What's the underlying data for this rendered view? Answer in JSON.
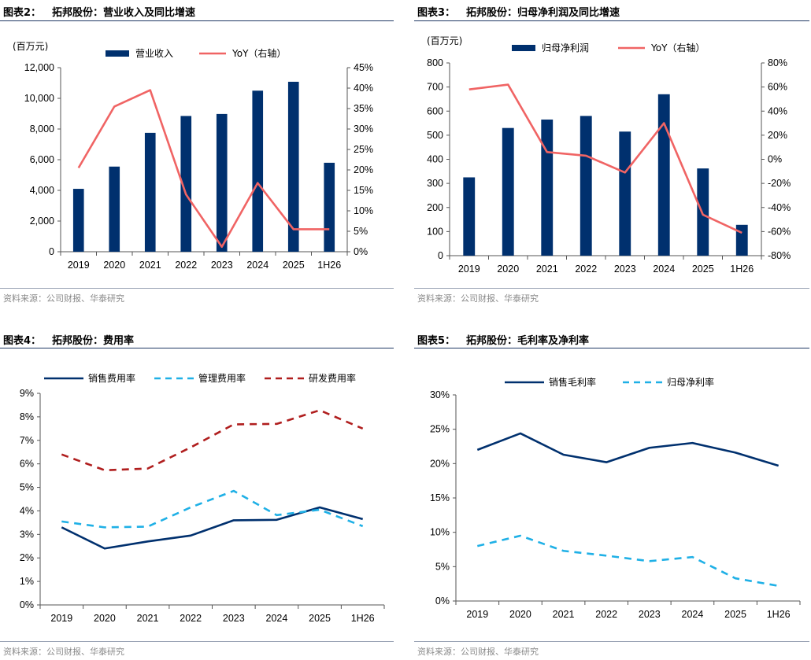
{
  "colors": {
    "navy": "#00306e",
    "red": "#f06464",
    "blue_dash": "#1fb0e6",
    "dark_red": "#b01e1e",
    "rule": "#1f3864"
  },
  "source_text": "资料来源：公司财报、华泰研究",
  "panels": [
    {
      "title_num": "图表2：",
      "title_text": "拓邦股份：营业收入及同比增速",
      "chart_data": {
        "type": "bar",
        "categories": [
          "2019",
          "2020",
          "2021",
          "2022",
          "2023",
          "2024",
          "2025",
          "1H26"
        ],
        "unit_label": "(百万元)",
        "series": [
          {
            "name": "营业收入",
            "type": "bar",
            "axis": "left",
            "values": [
              4100,
              5550,
              7750,
              8850,
              8980,
              10500,
              11080,
              5800
            ]
          },
          {
            "name": "YoY（右轴）",
            "type": "line",
            "axis": "right",
            "values": [
              20.5,
              35.5,
              39.5,
              14.0,
              1.2,
              16.8,
              5.5,
              5.5
            ]
          }
        ],
        "ylim": [
          0,
          12000
        ],
        "yticks": [
          0,
          2000,
          4000,
          6000,
          8000,
          10000,
          12000
        ],
        "ytick_labels": [
          "0",
          "2,000",
          "4,000",
          "6,000",
          "8,000",
          "10,000",
          "12,000"
        ],
        "y2lim": [
          0,
          45
        ],
        "y2ticks": [
          0,
          5,
          10,
          15,
          20,
          25,
          30,
          35,
          40,
          45
        ],
        "y2tick_labels": [
          "0%",
          "5%",
          "10%",
          "15%",
          "20%",
          "25%",
          "30%",
          "35%",
          "40%",
          "45%"
        ],
        "legend": "top"
      }
    },
    {
      "title_num": "图表3：",
      "title_text": "拓邦股份：归母净利润及同比增速",
      "chart_data": {
        "type": "bar",
        "categories": [
          "2019",
          "2020",
          "2021",
          "2022",
          "2023",
          "2024",
          "2025",
          "1H26"
        ],
        "unit_label": "(百万元)",
        "series": [
          {
            "name": "归母净利润",
            "type": "bar",
            "axis": "left",
            "values": [
              325,
              530,
              565,
              580,
              515,
              670,
              362,
              128
            ]
          },
          {
            "name": "YoY（右轴）",
            "type": "line",
            "axis": "right",
            "values": [
              58,
              62,
              6,
              3,
              -11,
              30,
              -46,
              -61
            ]
          }
        ],
        "ylim": [
          0,
          800
        ],
        "yticks": [
          0,
          100,
          200,
          300,
          400,
          500,
          600,
          700,
          800
        ],
        "ytick_labels": [
          "0",
          "100",
          "200",
          "300",
          "400",
          "500",
          "600",
          "700",
          "800"
        ],
        "y2lim": [
          -80,
          80
        ],
        "y2ticks": [
          -80,
          -60,
          -40,
          -20,
          0,
          20,
          40,
          60,
          80
        ],
        "y2tick_labels": [
          "-80%",
          "-60%",
          "-40%",
          "-20%",
          "0%",
          "20%",
          "40%",
          "60%",
          "80%"
        ],
        "legend": "top"
      }
    },
    {
      "title_num": "图表4：",
      "title_text": "拓邦股份：费用率",
      "chart_data": {
        "type": "line",
        "categories": [
          "2019",
          "2020",
          "2021",
          "2022",
          "2023",
          "2024",
          "2025",
          "1H26"
        ],
        "series": [
          {
            "name": "销售费用率",
            "style": "solid",
            "color": "#00306e",
            "values": [
              3.3,
              2.4,
              2.7,
              2.95,
              3.6,
              3.62,
              4.15,
              3.65
            ]
          },
          {
            "name": "管理费用率",
            "style": "dash",
            "color": "#1fb0e6",
            "values": [
              3.55,
              3.3,
              3.33,
              4.15,
              4.85,
              3.82,
              4.05,
              3.35
            ]
          },
          {
            "name": "研发费用率",
            "style": "dash",
            "color": "#b01e1e",
            "values": [
              6.4,
              5.73,
              5.8,
              6.7,
              7.68,
              7.7,
              8.28,
              7.5
            ]
          }
        ],
        "ylim": [
          0,
          9
        ],
        "yticks": [
          0,
          1,
          2,
          3,
          4,
          5,
          6,
          7,
          8,
          9
        ],
        "ytick_labels": [
          "0%",
          "1%",
          "2%",
          "3%",
          "4%",
          "5%",
          "6%",
          "7%",
          "8%",
          "9%"
        ],
        "legend": "top"
      }
    },
    {
      "title_num": "图表5：",
      "title_text": "拓邦股份：毛利率及净利率",
      "chart_data": {
        "type": "line",
        "categories": [
          "2019",
          "2020",
          "2021",
          "2022",
          "2023",
          "2024",
          "2025",
          "1H26"
        ],
        "series": [
          {
            "name": "销售毛利率",
            "style": "solid",
            "color": "#00306e",
            "values": [
              22.0,
              24.4,
              21.3,
              20.2,
              22.3,
              23.0,
              21.6,
              19.7
            ]
          },
          {
            "name": "归母净利率",
            "style": "dash",
            "color": "#1fb0e6",
            "values": [
              8.0,
              9.5,
              7.3,
              6.6,
              5.8,
              6.4,
              3.3,
              2.2
            ]
          }
        ],
        "ylim": [
          0,
          30
        ],
        "yticks": [
          0,
          5,
          10,
          15,
          20,
          25,
          30
        ],
        "ytick_labels": [
          "0%",
          "5%",
          "10%",
          "15%",
          "20%",
          "25%",
          "30%"
        ],
        "legend": "top"
      }
    }
  ]
}
